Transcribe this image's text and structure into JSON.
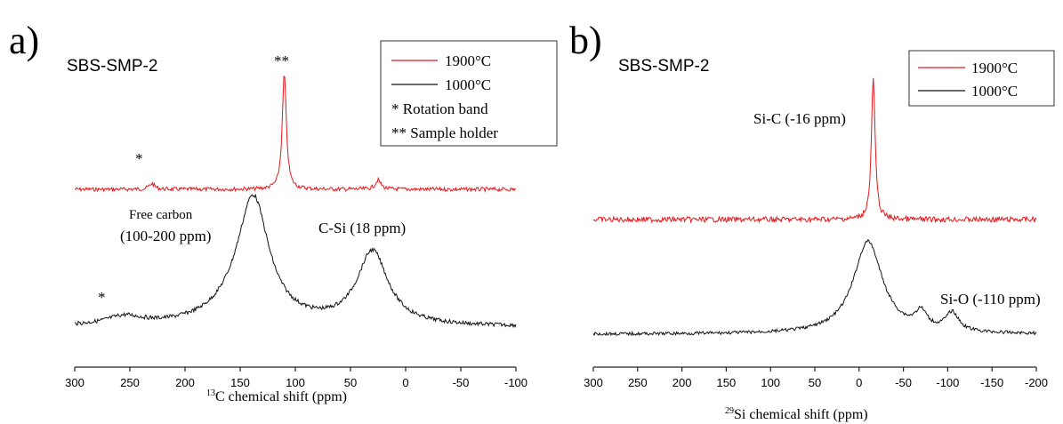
{
  "chart_data": [
    {
      "type": "line",
      "panel_label": "a)",
      "sample_label": "SBS-SMP-2",
      "xlabel_sup": "13",
      "xlabel": "C chemical shift  (ppm)",
      "xlim": [
        300,
        -100
      ],
      "xticks": [
        300,
        250,
        200,
        150,
        100,
        50,
        0,
        -50,
        -100
      ],
      "legend": {
        "position": "top-right",
        "entries": [
          "1900°C",
          "1000°C",
          "* Rotation band",
          "** Sample holder"
        ]
      },
      "series": [
        {
          "name": "1900°C",
          "color": "#e8161b",
          "baseline": 0.0,
          "peaks": [
            {
              "center": 110,
              "height": 1.0,
              "width": 2.2
            },
            {
              "center": 230,
              "height": 0.05,
              "width": 3
            },
            {
              "center": 25,
              "height": 0.08,
              "width": 3
            }
          ]
        },
        {
          "name": "1000°C",
          "color": "#111111",
          "baseline": 0.0,
          "peaks": [
            {
              "center": 138,
              "height": 0.96,
              "width": 17
            },
            {
              "center": 30,
              "height": 0.6,
              "width": 17
            },
            {
              "center": 255,
              "height": 0.07,
              "width": 20
            },
            {
              "center": 150,
              "height": 0.12,
              "width": 30
            }
          ]
        }
      ],
      "annotations": [
        "*",
        "**",
        "Free carbon",
        "(100-200 ppm)",
        "C-Si (18 ppm)",
        "*"
      ]
    },
    {
      "type": "line",
      "panel_label": "b)",
      "sample_label": "SBS-SMP-2",
      "xlabel_sup": "29",
      "xlabel": "Si chemical shift (ppm)",
      "xlim": [
        300,
        -200
      ],
      "xticks": [
        300,
        250,
        200,
        150,
        100,
        50,
        0,
        -50,
        -100,
        -150,
        -200
      ],
      "legend": {
        "position": "top-right",
        "entries": [
          "1900°C",
          "1000°C"
        ]
      },
      "series": [
        {
          "name": "1900°C",
          "color": "#e8161b",
          "baseline": 0.0,
          "peaks": [
            {
              "center": -16,
              "height": 1.0,
              "width": 2.5
            }
          ]
        },
        {
          "name": "1000°C",
          "color": "#111111",
          "baseline": 0.0,
          "peaks": [
            {
              "center": -10,
              "height": 1.0,
              "width": 20
            },
            {
              "center": -70,
              "height": 0.18,
              "width": 8
            },
            {
              "center": -105,
              "height": 0.2,
              "width": 9
            }
          ]
        }
      ],
      "annotations": [
        "Si-C (-16 ppm)",
        "Si-O (-110 ppm)"
      ]
    }
  ],
  "colors": {
    "red": "#e8161b",
    "black": "#111111",
    "axis": "#222222"
  }
}
